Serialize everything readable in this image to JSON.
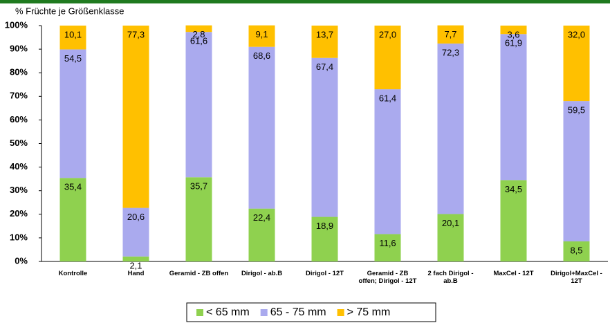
{
  "chart_data": {
    "type": "stacked_bar_percent",
    "y_axis_label": "% Früchte je Größenklasse",
    "categories": [
      "Kontrolle",
      "Hand",
      "Geramid - ZB offen",
      "Dirigol - ab.B",
      "Dirigol - 12T",
      "Geramid - ZB offen; Dirigol - 12T",
      "2 fach Dirigol - ab.B",
      "MaxCel - 12T",
      "Dirigol+MaxCel - 12T"
    ],
    "series": [
      {
        "name": "< 65 mm",
        "color": "#8fd14f",
        "values": [
          35.4,
          2.1,
          35.7,
          22.4,
          18.9,
          11.6,
          20.1,
          34.5,
          8.5
        ],
        "value_labels": [
          "35,4",
          "2,1",
          "35,7",
          "22,4",
          "18,9",
          "11,6",
          "20,1",
          "34,5",
          "8,5"
        ]
      },
      {
        "name": "65 - 75 mm",
        "color": "#aaaaee",
        "values": [
          54.5,
          20.6,
          61.6,
          68.6,
          67.4,
          61.4,
          72.3,
          61.9,
          59.5
        ],
        "value_labels": [
          "54,5",
          "20,6",
          "61,6",
          "68,6",
          "67,4",
          "61,4",
          "72,3",
          "61,9",
          "59,5"
        ]
      },
      {
        "name": "> 75 mm",
        "color": "#ffc000",
        "values": [
          10.1,
          77.3,
          2.8,
          9.1,
          13.7,
          27.0,
          7.7,
          3.6,
          32.0
        ],
        "value_labels": [
          "10,1",
          "77,3",
          "2,8",
          "9,1",
          "13,7",
          "27,0",
          "7,7",
          "3,6",
          "32,0"
        ]
      }
    ],
    "ylim": [
      0,
      100
    ],
    "yticks": [
      {
        "value": 0,
        "label": "0%"
      },
      {
        "value": 10,
        "label": "10%"
      },
      {
        "value": 20,
        "label": "20%"
      },
      {
        "value": 30,
        "label": "30%"
      },
      {
        "value": 40,
        "label": "40%"
      },
      {
        "value": 50,
        "label": "50%"
      },
      {
        "value": 60,
        "label": "60%"
      },
      {
        "value": 70,
        "label": "70%"
      },
      {
        "value": 80,
        "label": "80%"
      },
      {
        "value": 90,
        "label": "90%"
      },
      {
        "value": 100,
        "label": "100%"
      }
    ],
    "legend": "bottom"
  }
}
